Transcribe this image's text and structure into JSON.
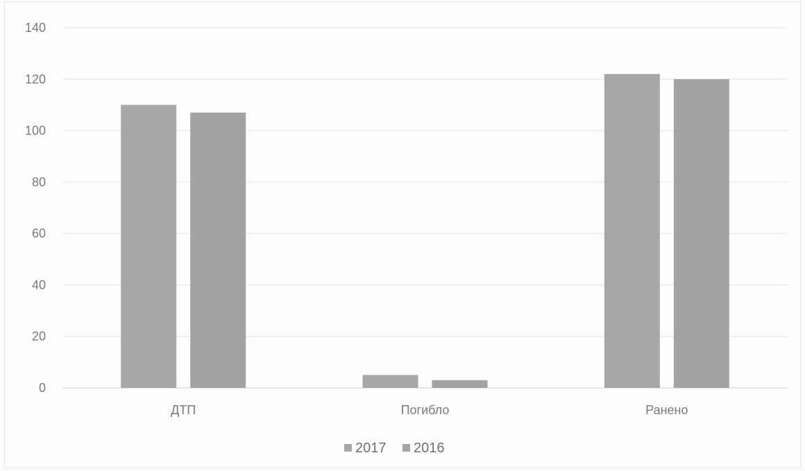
{
  "chart_data": {
    "type": "bar",
    "title": "",
    "xlabel": "",
    "ylabel": "",
    "categories": [
      "ДТП",
      "Погибло",
      "Ранено"
    ],
    "series": [
      {
        "name": "2017",
        "values": [
          110,
          5,
          122
        ]
      },
      {
        "name": "2016",
        "values": [
          107,
          3,
          120
        ]
      }
    ],
    "ylim": [
      0,
      140
    ],
    "yticks": [
      0,
      20,
      40,
      60,
      80,
      100,
      120,
      140
    ],
    "grid": true,
    "legend_position": "bottom",
    "colors": {
      "2017": "#a7a7a7",
      "2016": "#a3a3a3"
    }
  }
}
